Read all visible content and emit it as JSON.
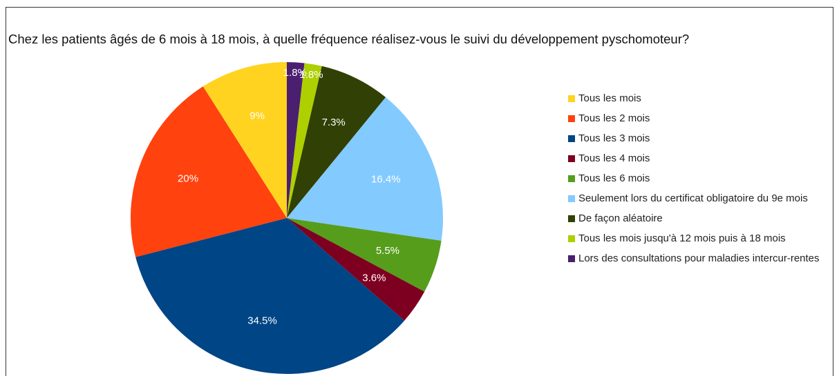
{
  "chart_data": {
    "type": "pie",
    "title": "Chez les patients âgés de 6 mois à 18 mois, à quelle fréquence réalisez-vous le suivi du développement pyschomoteur?",
    "categories": [
      "Tous les mois",
      "Tous les 2 mois",
      "Tous les 3 mois",
      "Tous les 4 mois",
      "Tous les 6 mois",
      "Seulement lors du certificat obligatoire du 9e mois",
      "De façon aléatoire",
      "Tous les mois jusqu'à 12 mois puis à 18 mois",
      "Lors des consultations pour maladies intercur-rentes"
    ],
    "values": [
      9,
      20,
      34.5,
      3.6,
      5.5,
      16.4,
      7.3,
      1.8,
      1.8
    ],
    "value_labels": [
      "9%",
      "20%",
      "34.5%",
      "3.6%",
      "5.5%",
      "16.4%",
      "7.3%",
      "1.8%",
      "1.8%"
    ],
    "colors": [
      "#ffd320",
      "#ff420e",
      "#004586",
      "#7e0021",
      "#579d1c",
      "#83caff",
      "#314004",
      "#aecf00",
      "#4b1f6f"
    ],
    "legend": "right"
  }
}
